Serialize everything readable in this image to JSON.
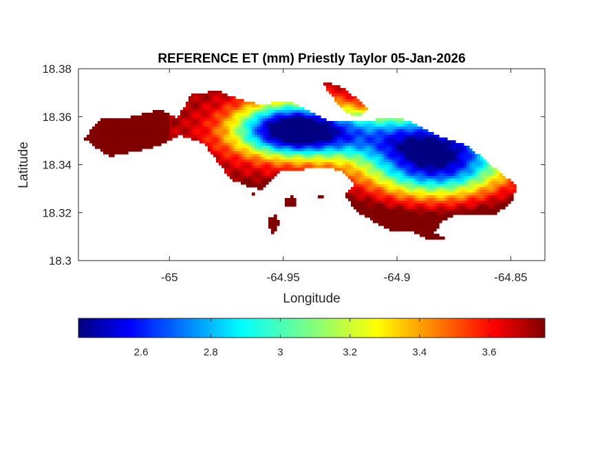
{
  "chart_data": {
    "type": "heatmap",
    "title": "REFERENCE ET (mm) Priestly Taylor 05-Jan-2026",
    "xlabel": "Longitude",
    "ylabel": "Latitude",
    "xlim": [
      -65.04,
      -64.835
    ],
    "ylim": [
      18.3,
      18.38
    ],
    "x_ticks": [
      -65,
      -64.95,
      -64.9,
      -64.85
    ],
    "x_tick_labels": [
      "-65",
      "-64.95",
      "-64.9",
      "-64.85"
    ],
    "y_ticks": [
      18.3,
      18.32,
      18.34,
      18.36,
      18.38
    ],
    "y_tick_labels": [
      "18.3",
      "18.32",
      "18.34",
      "18.36",
      "18.38"
    ],
    "colormap": "jet",
    "colorbar": {
      "location": "south",
      "clim": [
        2.42,
        3.76
      ],
      "ticks": [
        2.6,
        2.8,
        3.0,
        3.2,
        3.4,
        3.6
      ],
      "tick_labels": [
        "2.6",
        "2.8",
        "3",
        "3.2",
        "3.4",
        "3.6"
      ]
    },
    "field_summary": {
      "high_values_west_and_south_coast": 3.7,
      "low_value_centers": [
        {
          "lon": -64.946,
          "lat": 18.355,
          "value": 2.45
        },
        {
          "lon": -64.883,
          "lat": 18.342,
          "value": 2.45
        }
      ]
    }
  }
}
